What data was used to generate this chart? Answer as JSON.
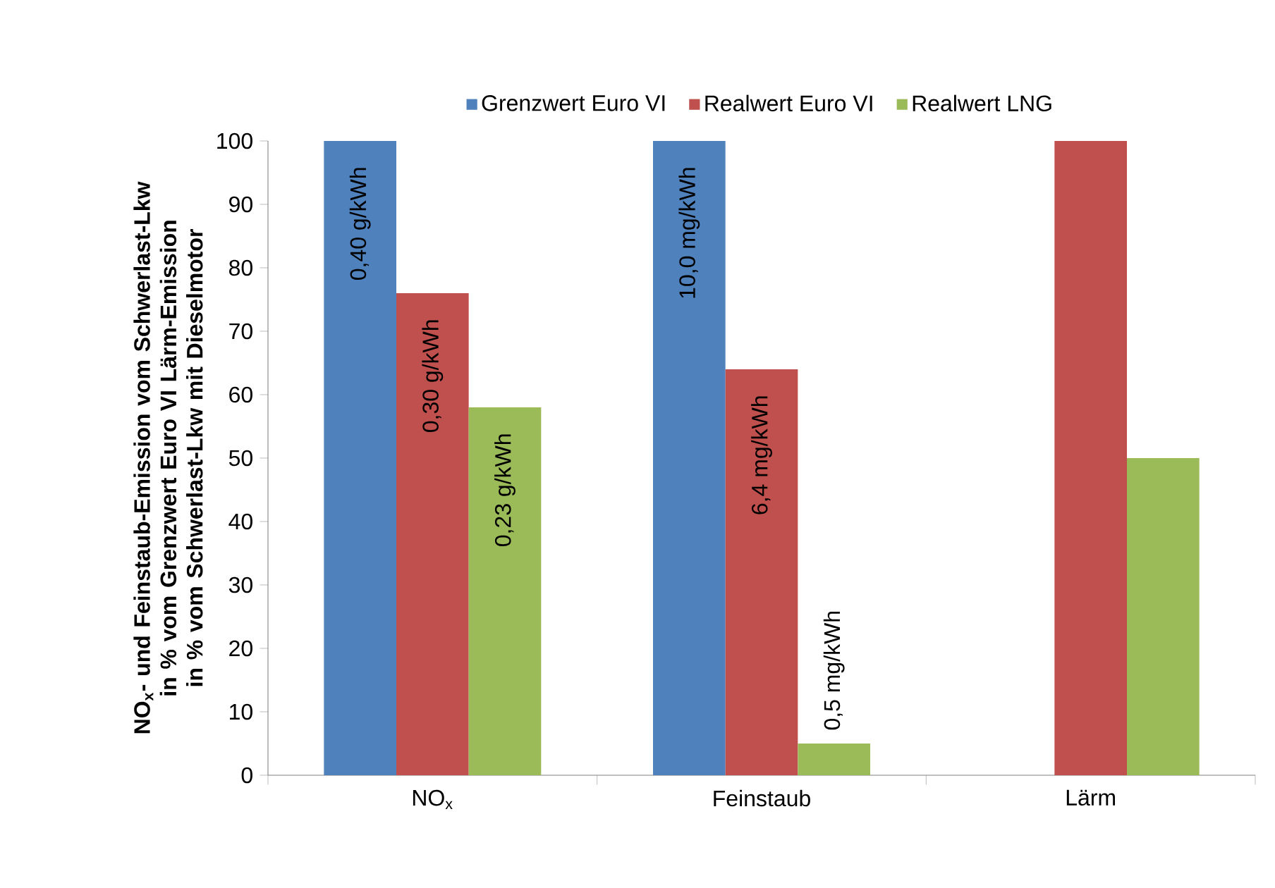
{
  "chart_data": {
    "type": "bar",
    "ylabel": "NO$_{x}$- und Feinstaub-Emission vom Schwerlast-Lkw in % vom Grenzwert Euro VI Lärm-Emission in % vom Schwerlast-Lkw mit Dieselmotor",
    "categories": [
      "NO$_{x}$",
      "Feinstaub",
      "Lärm"
    ],
    "series": [
      {
        "name": "Grenzwert Euro VI",
        "color": "#4f81bd",
        "values": [
          100,
          100,
          null
        ]
      },
      {
        "name": "Realwert Euro VI",
        "color": "#c0504d",
        "values": [
          76,
          64,
          100
        ]
      },
      {
        "name": "Realwert LNG",
        "color": "#9bbb59",
        "values": [
          58,
          5,
          50
        ]
      }
    ],
    "annotations": [
      "0,40 g/kWh",
      "0,30 g/kWh",
      "0,23 g/kWh",
      "10,0 mg/kWh",
      "6,4 mg/kWh",
      "0,5 mg/kWh"
    ],
    "ylim": [
      0,
      100
    ],
    "yticks": [
      0,
      10,
      20,
      30,
      40,
      50,
      60,
      70,
      80,
      90,
      100
    ],
    "legend": "top",
    "grid": false
  }
}
